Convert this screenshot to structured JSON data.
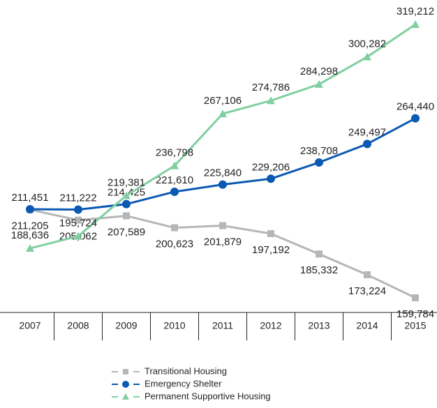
{
  "chart_data": {
    "type": "line",
    "categories": [
      "2007",
      "2008",
      "2009",
      "2010",
      "2011",
      "2012",
      "2013",
      "2014",
      "2015"
    ],
    "series": [
      {
        "name": "Transitional Housing",
        "color": "#b4b6b9",
        "marker": "square",
        "values": [
          211205,
          205062,
          207589,
          200623,
          201879,
          197192,
          185332,
          173224,
          159784
        ],
        "value_labels": [
          "211,205",
          "205,062",
          "207,589",
          "200,623",
          "201,879",
          "197,192",
          "185,332",
          "173,224",
          "159,784"
        ]
      },
      {
        "name": "Emergency Shelter",
        "color": "#0b59b3",
        "marker": "circle",
        "values": [
          211451,
          211222,
          214425,
          221610,
          225840,
          229206,
          238708,
          249497,
          264440
        ],
        "value_labels": [
          "211,451",
          "211,222",
          "214,425",
          "221,610",
          "225,840",
          "229,206",
          "238,708",
          "249,497",
          "264,440"
        ]
      },
      {
        "name": "Permanent Supportive Housing",
        "color": "#80cfa0",
        "marker": "triangle",
        "values": [
          188636,
          195724,
          219381,
          236798,
          267106,
          274786,
          284298,
          300282,
          319212
        ],
        "value_labels": [
          "188,636",
          "195,724",
          "219,381",
          "236,798",
          "267,106",
          "274,786",
          "284,298",
          "300,282",
          "319,212"
        ]
      }
    ]
  }
}
